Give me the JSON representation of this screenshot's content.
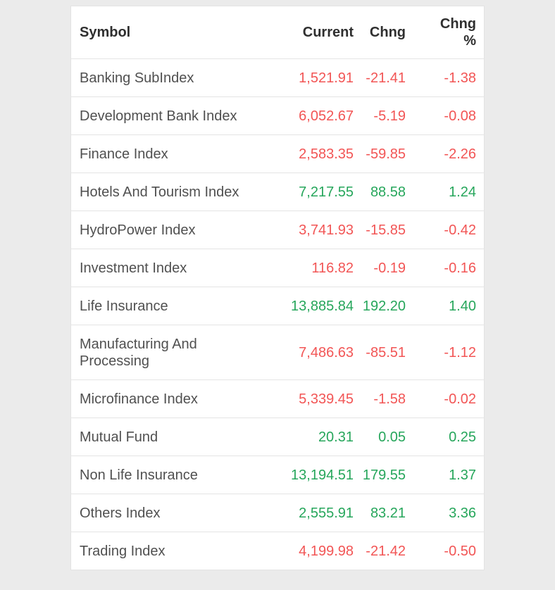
{
  "colors": {
    "up": "#26a65b",
    "down": "#f25555",
    "header_text": "#2f2f2f",
    "symbol_text": "#505050",
    "row_border": "#e4e4e4",
    "table_bg": "#ffffff",
    "page_bg": "#ebebeb"
  },
  "chart_data": {
    "type": "table",
    "columns": [
      "Symbol",
      "Current",
      "Chng",
      "Chng %"
    ],
    "rows": [
      {
        "symbol": "Banking SubIndex",
        "current": "1,521.91",
        "chng": "-21.41",
        "chng_pct": "-1.38",
        "direction": "down"
      },
      {
        "symbol": "Development Bank Index",
        "current": "6,052.67",
        "chng": "-5.19",
        "chng_pct": "-0.08",
        "direction": "down"
      },
      {
        "symbol": "Finance Index",
        "current": "2,583.35",
        "chng": "-59.85",
        "chng_pct": "-2.26",
        "direction": "down"
      },
      {
        "symbol": "Hotels And Tourism Index",
        "current": "7,217.55",
        "chng": "88.58",
        "chng_pct": "1.24",
        "direction": "up"
      },
      {
        "symbol": "HydroPower Index",
        "current": "3,741.93",
        "chng": "-15.85",
        "chng_pct": "-0.42",
        "direction": "down"
      },
      {
        "symbol": "Investment Index",
        "current": "116.82",
        "chng": "-0.19",
        "chng_pct": "-0.16",
        "direction": "down"
      },
      {
        "symbol": "Life Insurance",
        "current": "13,885.84",
        "chng": "192.20",
        "chng_pct": "1.40",
        "direction": "up"
      },
      {
        "symbol": "Manufacturing And Processing",
        "current": "7,486.63",
        "chng": "-85.51",
        "chng_pct": "-1.12",
        "direction": "down"
      },
      {
        "symbol": "Microfinance Index",
        "current": "5,339.45",
        "chng": "-1.58",
        "chng_pct": "-0.02",
        "direction": "down"
      },
      {
        "symbol": "Mutual Fund",
        "current": "20.31",
        "chng": "0.05",
        "chng_pct": "0.25",
        "direction": "up"
      },
      {
        "symbol": "Non Life Insurance",
        "current": "13,194.51",
        "chng": "179.55",
        "chng_pct": "1.37",
        "direction": "up"
      },
      {
        "symbol": "Others Index",
        "current": "2,555.91",
        "chng": "83.21",
        "chng_pct": "3.36",
        "direction": "up"
      },
      {
        "symbol": "Trading Index",
        "current": "4,199.98",
        "chng": "-21.42",
        "chng_pct": "-0.50",
        "direction": "down"
      }
    ]
  }
}
